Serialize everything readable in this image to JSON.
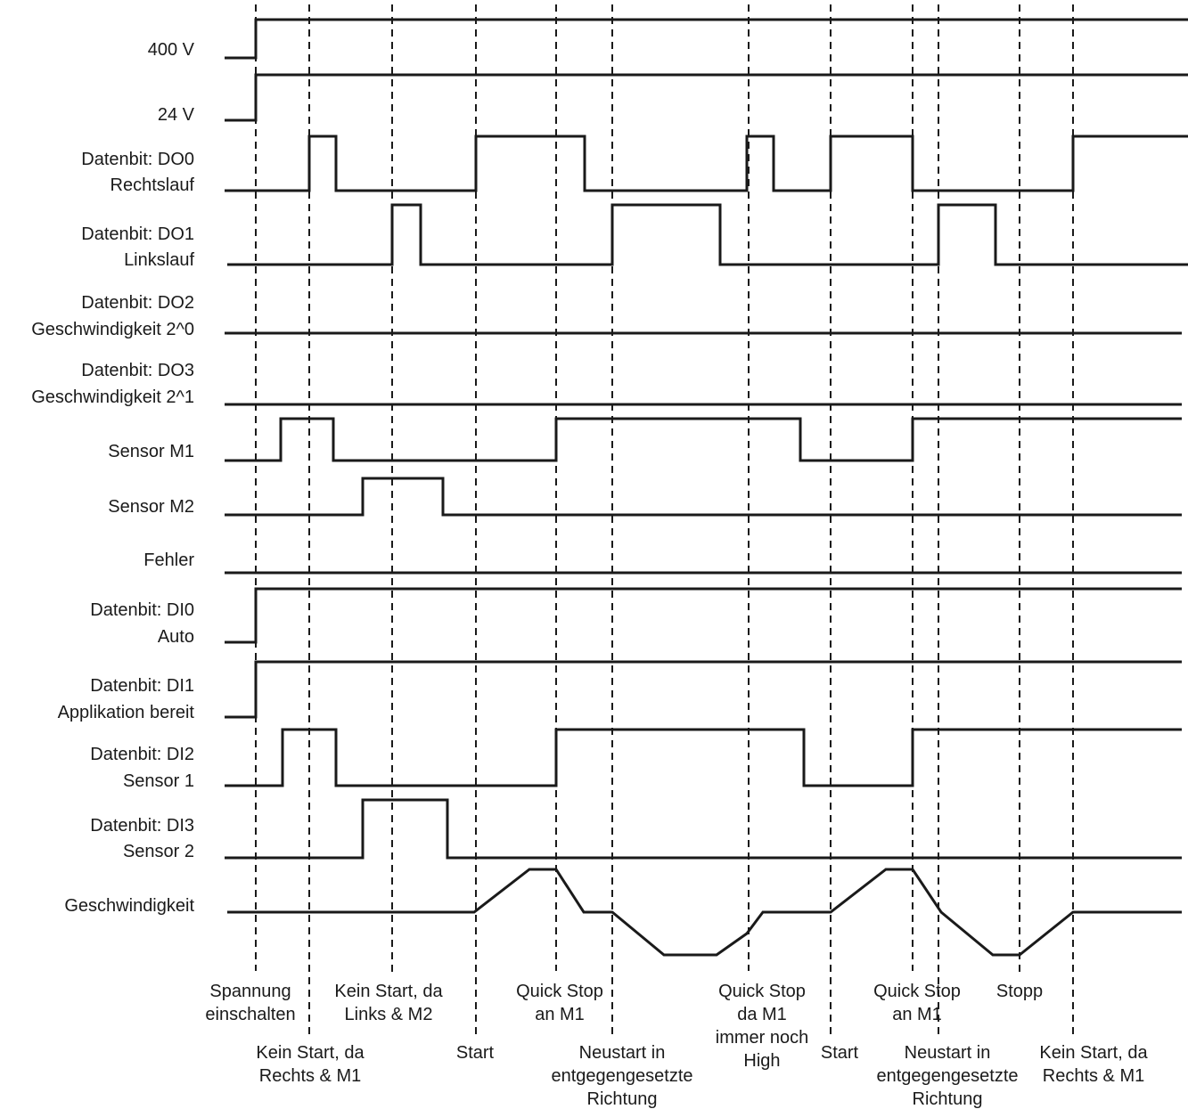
{
  "signals": [
    {
      "lines": [
        "400 V"
      ]
    },
    {
      "lines": [
        "24 V"
      ]
    },
    {
      "lines": [
        "Datenbit: DO0",
        "Rechtslauf"
      ]
    },
    {
      "lines": [
        "Datenbit: DO1",
        "Linkslauf"
      ]
    },
    {
      "lines": [
        "Datenbit: DO2",
        "Geschwindigkeit 2^0"
      ]
    },
    {
      "lines": [
        "Datenbit: DO3",
        "Geschwindigkeit 2^1"
      ]
    },
    {
      "lines": [
        "Sensor M1"
      ]
    },
    {
      "lines": [
        "Sensor M2"
      ]
    },
    {
      "lines": [
        "Fehler"
      ]
    },
    {
      "lines": [
        "Datenbit: DI0",
        "Auto"
      ]
    },
    {
      "lines": [
        "Datenbit: DI1",
        "Applikation bereit"
      ]
    },
    {
      "lines": [
        "Datenbit: DI2",
        "Sensor 1"
      ]
    },
    {
      "lines": [
        "Datenbit: DI3",
        "Sensor 2"
      ]
    },
    {
      "lines": [
        "Geschwindigkeit"
      ]
    }
  ],
  "annotations": [
    {
      "lines": [
        "Spannung",
        "einschalten"
      ]
    },
    {
      "lines": [
        "Kein Start, da",
        "Rechts & M1"
      ]
    },
    {
      "lines": [
        "Kein Start, da",
        "Links & M2"
      ]
    },
    {
      "lines": [
        "Start"
      ]
    },
    {
      "lines": [
        "Quick Stop",
        "an M1"
      ]
    },
    {
      "lines": [
        "Neustart in",
        "entgegengesetzte",
        "Richtung"
      ]
    },
    {
      "lines": [
        "Quick Stop",
        "da M1",
        "immer noch",
        "High"
      ]
    },
    {
      "lines": [
        "Start"
      ]
    },
    {
      "lines": [
        "Quick Stop",
        "an M1"
      ]
    },
    {
      "lines": [
        "Neustart in",
        "entgegengesetzte",
        "Richtung"
      ]
    },
    {
      "lines": [
        "Stopp"
      ]
    },
    {
      "lines": [
        "Kein Start, da",
        "Rechts & M1"
      ]
    }
  ]
}
